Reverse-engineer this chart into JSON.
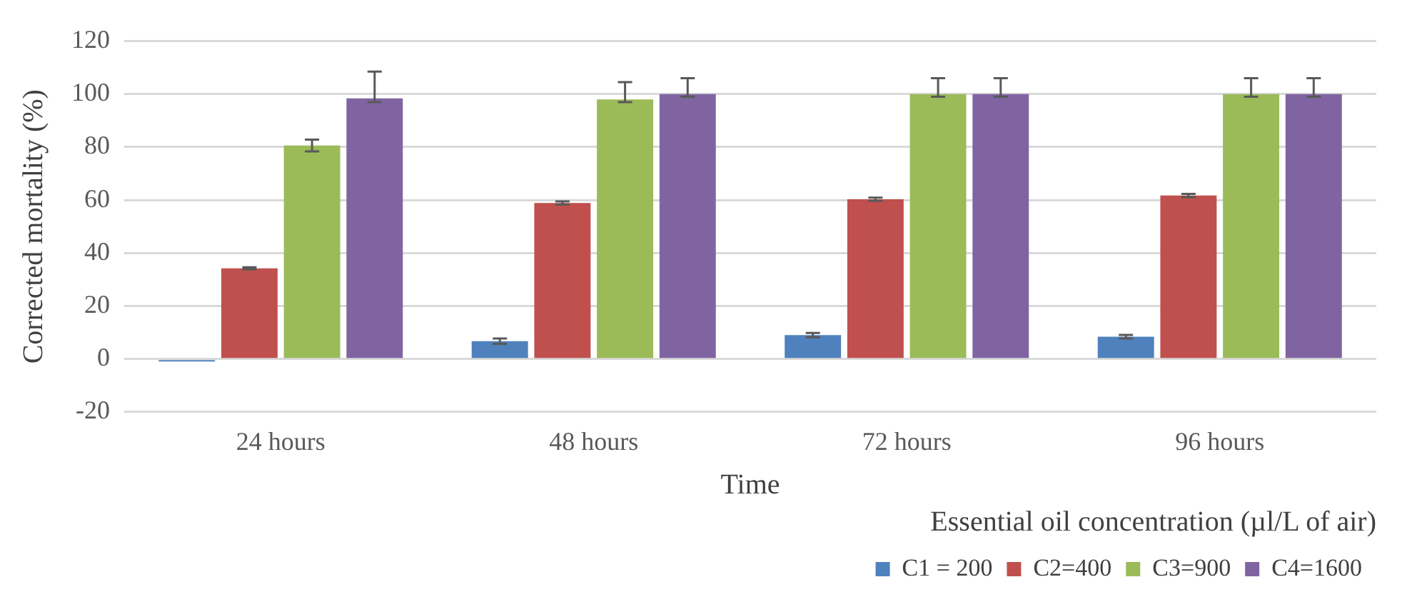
{
  "chart_data": {
    "type": "bar",
    "categories": [
      "24 hours",
      "48 hours",
      "72 hours",
      "96 hours"
    ],
    "xlabel": "Time",
    "ylabel": "Corrected mortality (%)",
    "legend_title": "Essential oil concentration (µl/L of air)",
    "series": [
      {
        "name": "C1 = 200",
        "color": "#4f81bd",
        "values": [
          -1,
          6.7,
          9,
          8.4
        ],
        "errors": [
          null,
          1,
          0.8,
          0.7
        ]
      },
      {
        "name": "C2=400",
        "color": "#c0504d",
        "values": [
          34.2,
          58.9,
          60.3,
          61.7
        ],
        "errors": [
          0.4,
          0.6,
          0.6,
          0.6
        ]
      },
      {
        "name": "C3=900",
        "color": "#9bbb59",
        "values": [
          80.6,
          98,
          100,
          100
        ],
        "errors": [
          2.2,
          [
            97,
            104.5
          ],
          [
            99,
            106
          ],
          [
            99,
            106
          ]
        ]
      },
      {
        "name": "C4=1600",
        "color": "#8064a2",
        "values": [
          98.4,
          100,
          100,
          100
        ],
        "errors": [
          [
            97,
            108.5
          ],
          [
            99,
            106
          ],
          [
            99,
            106
          ],
          [
            99,
            106
          ]
        ]
      }
    ],
    "ylim": [
      -20,
      120
    ],
    "yticks": [
      -20,
      0,
      20,
      40,
      60,
      80,
      100,
      120
    ],
    "grid": "y",
    "legend": "bottom"
  }
}
